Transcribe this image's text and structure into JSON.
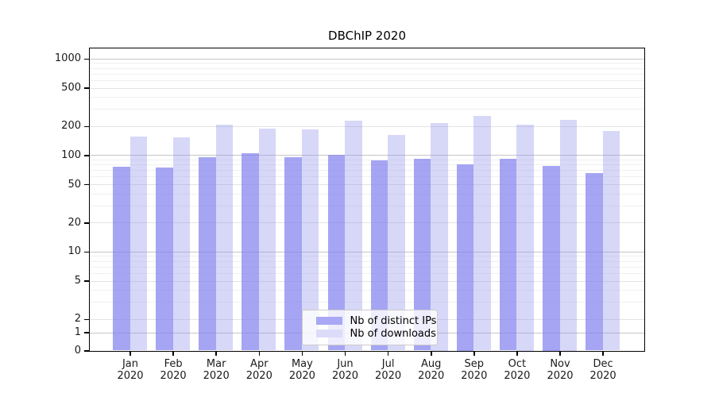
{
  "chart_data": {
    "type": "bar",
    "title": "DBChIP 2020",
    "categories": [
      "Jan 2020",
      "Feb 2020",
      "Mar 2020",
      "Apr 2020",
      "May 2020",
      "Jun 2020",
      "Jul 2020",
      "Aug 2020",
      "Sep 2020",
      "Oct 2020",
      "Nov 2020",
      "Dec 2020"
    ],
    "series": [
      {
        "name": "Nb of distinct IPs",
        "color": "#a8a8f5",
        "fill": "rgba(130,130,240,0.72)",
        "values": [
          76,
          75,
          95,
          104,
          95,
          100,
          88,
          92,
          81,
          91,
          78,
          65
        ]
      },
      {
        "name": "Nb of downloads",
        "color": "#dcdcf8",
        "fill": "rgba(150,150,235,0.38)",
        "values": [
          155,
          152,
          206,
          188,
          186,
          228,
          162,
          217,
          257,
          209,
          234,
          177
        ]
      }
    ],
    "y_axis": {
      "scale": "log-like with 0 baseline",
      "ticks": [
        0,
        1,
        2,
        5,
        10,
        20,
        50,
        100,
        200,
        500,
        1000
      ],
      "minor_ticks": [
        3,
        4,
        6,
        7,
        8,
        9,
        30,
        40,
        60,
        70,
        80,
        90,
        300,
        400,
        600,
        700,
        800,
        900
      ],
      "range": [
        0,
        1000
      ]
    },
    "x_axis": {
      "label": "",
      "two_line_tick_labels": true
    },
    "legend": {
      "position": "inside-bottom-center"
    },
    "grid": true
  },
  "colors": {
    "background": "#ffffff",
    "frame": "#000000",
    "text": "#1a1a1a",
    "grid_major_strong": "#c6c6c6",
    "grid_major": "#e3e3e3",
    "grid_minor": "#f0f0f0",
    "legend_bg": "rgba(255,255,255,0.8)",
    "legend_border": "#cccccc"
  }
}
